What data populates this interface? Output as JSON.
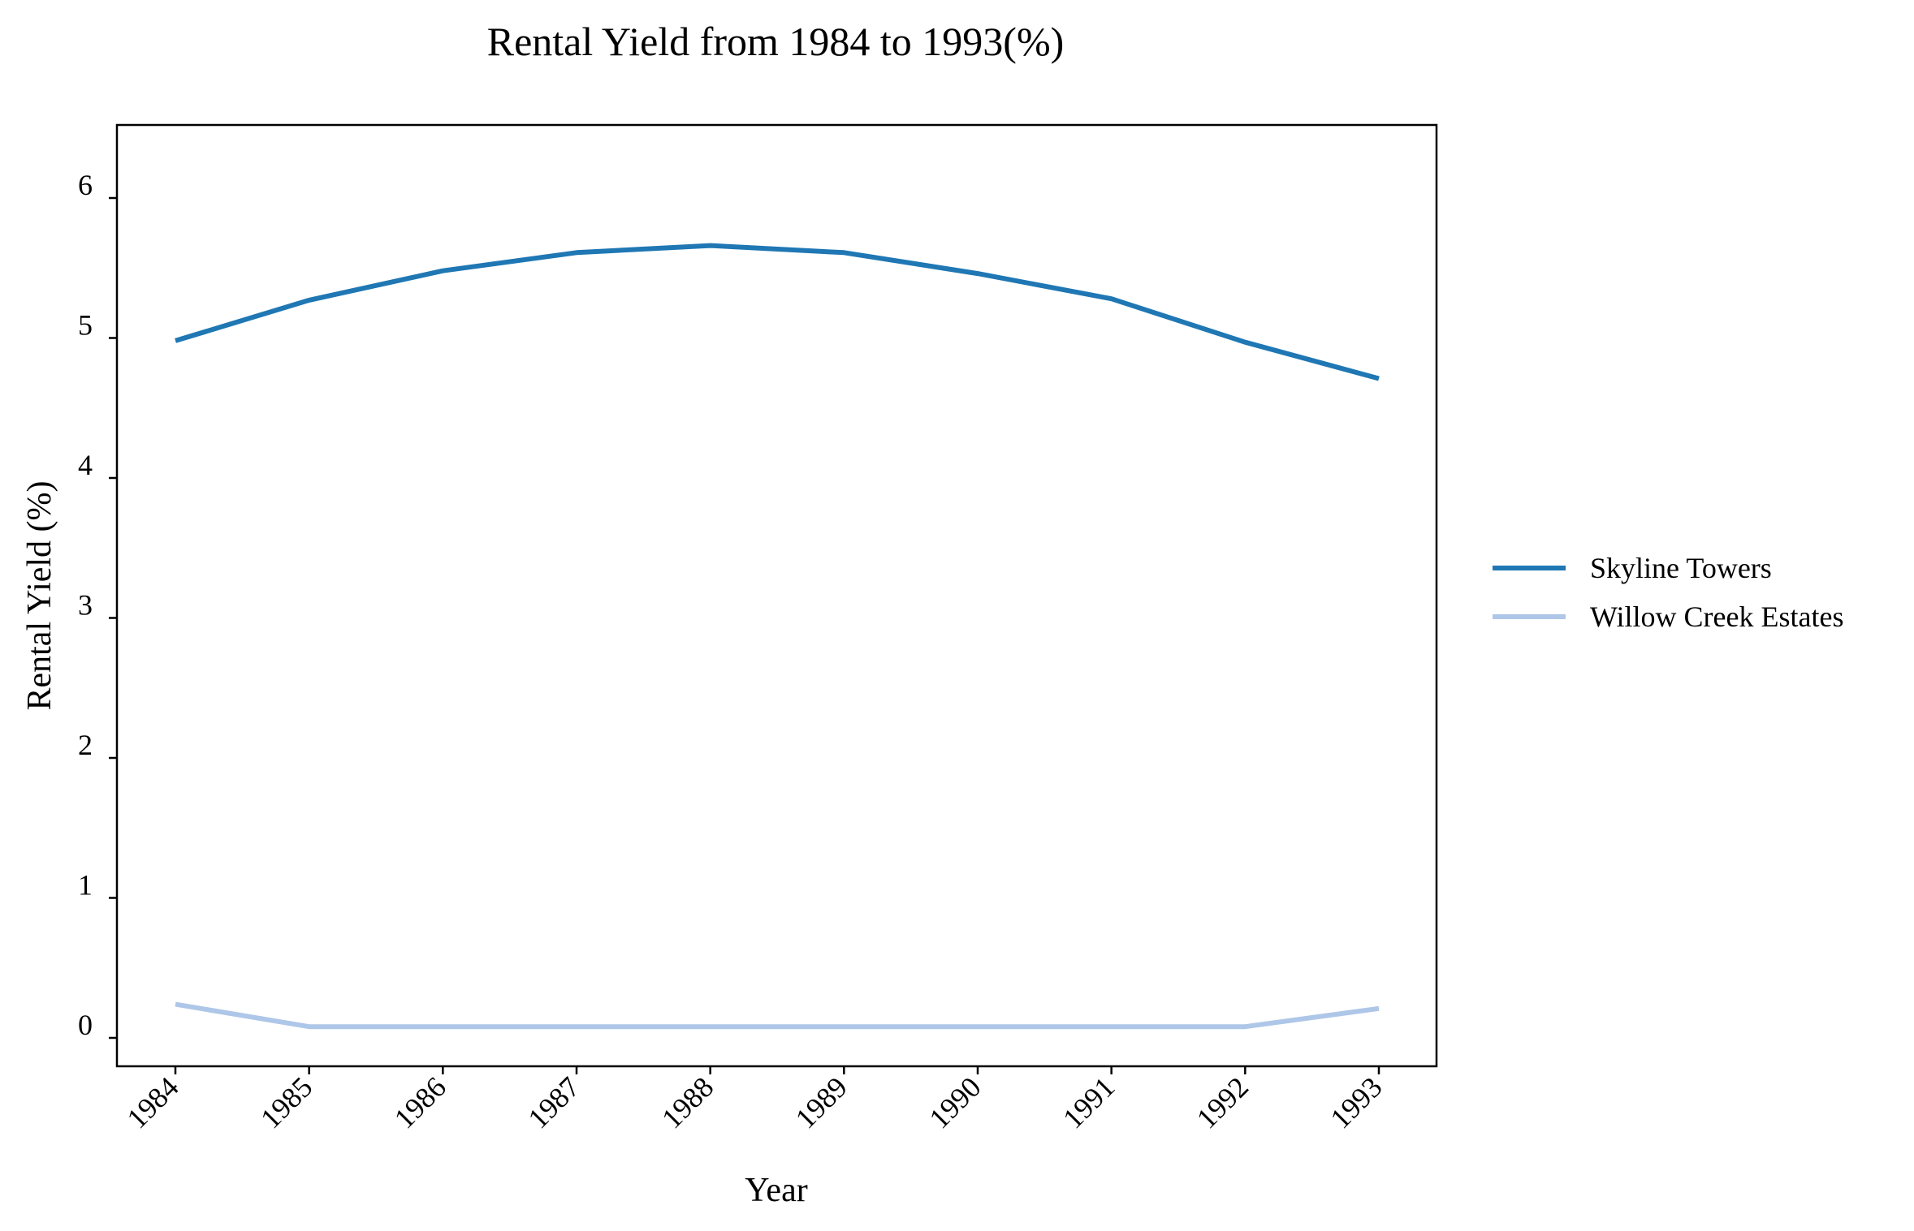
{
  "chart_data": {
    "type": "line",
    "title": "Rental Yield from 1984 to 1993(%)",
    "xlabel": "Year",
    "ylabel": "Rental Yield (%)",
    "categories": [
      "1984",
      "1985",
      "1986",
      "1987",
      "1988",
      "1989",
      "1990",
      "1991",
      "1992",
      "1993"
    ],
    "ylim": [
      -0.2,
      6.5
    ],
    "yticks": [
      0,
      1,
      2,
      3,
      4,
      5,
      6
    ],
    "grid": false,
    "legend_position": "right",
    "series": [
      {
        "name": "Skyline Towers",
        "color": "#1f77b4",
        "values": [
          4.98,
          5.27,
          5.48,
          5.61,
          5.66,
          5.61,
          5.46,
          5.28,
          4.97,
          4.71
        ]
      },
      {
        "name": "Willow Creek Estates",
        "color": "#aec7e8",
        "values": [
          0.24,
          0.08,
          0.08,
          0.08,
          0.08,
          0.08,
          0.08,
          0.08,
          0.08,
          0.21
        ]
      }
    ]
  }
}
